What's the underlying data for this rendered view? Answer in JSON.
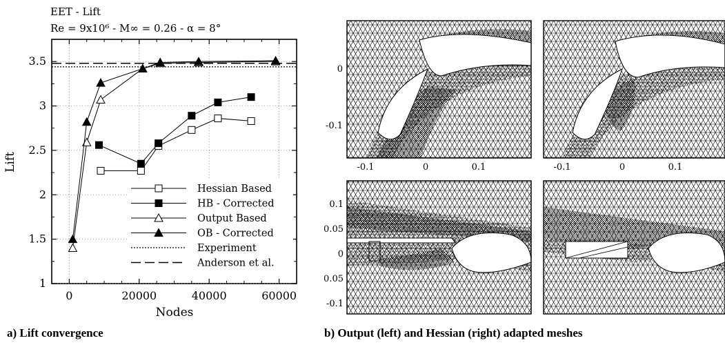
{
  "chart_data": [
    {
      "type": "line",
      "title": "EET - Lift",
      "subtitle": "Re = 9x10⁶ - M∞ = 0.26 - α = 8°",
      "xlabel": "Nodes",
      "ylabel": "Lift",
      "xlim": [
        -5000,
        65000
      ],
      "ylim": [
        1,
        3.75
      ],
      "xticks": [
        0,
        20000,
        40000,
        60000
      ],
      "xtick_labels": [
        "0",
        "20000",
        "40000",
        "60000"
      ],
      "yticks": [
        1,
        1.5,
        2,
        2.5,
        3,
        3.5
      ],
      "ytick_labels": [
        "1",
        "1.5",
        "2",
        "2.5",
        "3",
        "3.5"
      ],
      "grid": true,
      "legend_position": "lower-right",
      "series": [
        {
          "name": "Hessian Based",
          "marker": "square-open",
          "color": "#000000",
          "x": [
            9000,
            20500,
            25500,
            35000,
            42500,
            52000
          ],
          "y": [
            2.27,
            2.27,
            2.55,
            2.73,
            2.86,
            2.83
          ]
        },
        {
          "name": "HB - Corrected",
          "marker": "square-filled",
          "color": "#000000",
          "x": [
            8500,
            20500,
            25500,
            35000,
            42500,
            52000
          ],
          "y": [
            2.56,
            2.35,
            2.58,
            2.89,
            3.04,
            3.1
          ]
        },
        {
          "name": "Output Based",
          "marker": "triangle-open",
          "color": "#000000",
          "x": [
            1000,
            5000,
            9000,
            21000,
            26000,
            37000,
            59000
          ],
          "y": [
            1.4,
            2.59,
            3.07,
            3.42,
            3.48,
            3.49,
            3.5
          ]
        },
        {
          "name": "OB - Corrected",
          "marker": "triangle-filled",
          "color": "#000000",
          "x": [
            1000,
            5000,
            9000,
            21000,
            26000,
            37000,
            59000
          ],
          "y": [
            1.5,
            2.82,
            3.26,
            3.42,
            3.49,
            3.5,
            3.51
          ]
        },
        {
          "name": "Experiment",
          "style": "dotted",
          "y_const": 3.44
        },
        {
          "name": "Anderson et al.",
          "style": "dashed",
          "y_const": 3.48
        }
      ]
    },
    {
      "type": "other",
      "description_role": "adapted-mesh-panel",
      "panels": [
        {
          "id": "top-left",
          "xticks": [
            "-0.1",
            "0",
            "0.1"
          ],
          "yticks": [
            "0",
            "-0.1"
          ]
        },
        {
          "id": "top-right",
          "xticks": [
            "-0.1",
            "0",
            "0.1"
          ]
        },
        {
          "id": "bottom-left",
          "yticks": [
            "0.1",
            "0.05",
            "0",
            "-0.05",
            "-0.1"
          ]
        },
        {
          "id": "bottom-right"
        }
      ]
    }
  ],
  "captions": {
    "a": "a) Lift convergence",
    "b": "b) Output (left) and Hessian (right) adapted meshes"
  }
}
